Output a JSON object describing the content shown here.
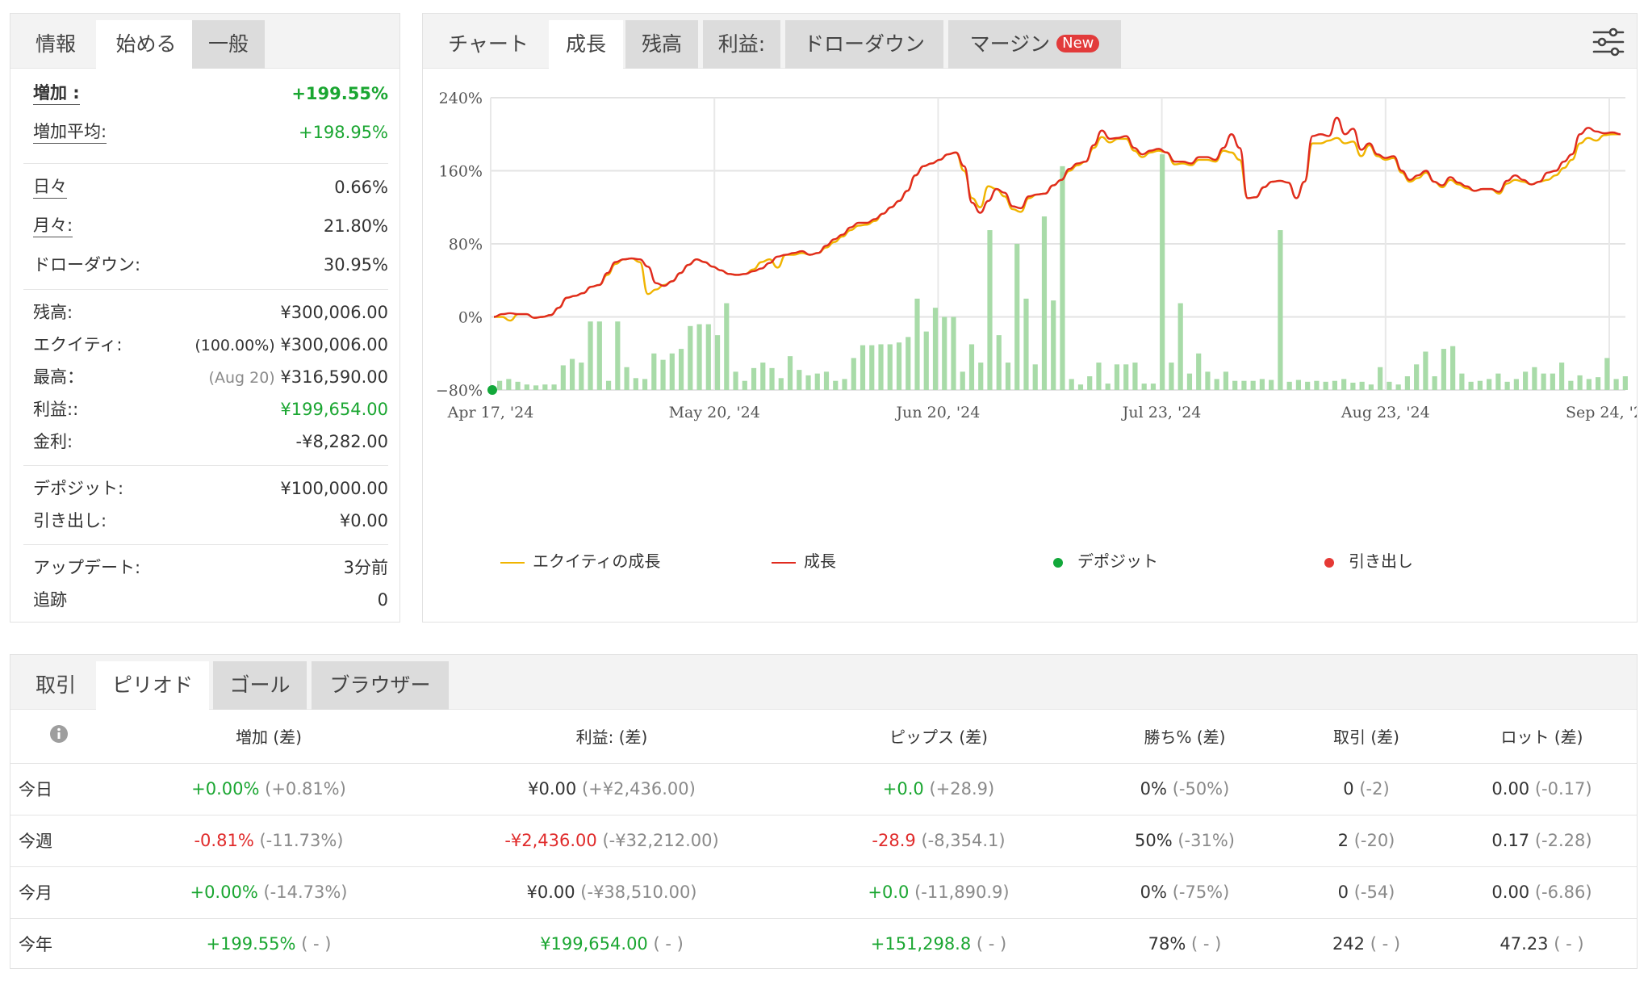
{
  "info_panel": {
    "tabs": [
      "情報",
      "始める",
      "一般"
    ],
    "rows": {
      "gain": {
        "label": "増加 :",
        "value": "+199.55%"
      },
      "abs_gain": {
        "label": "増加平均:",
        "value": "+198.95%"
      },
      "daily": {
        "label": "日々",
        "value": "0.66%"
      },
      "monthly": {
        "label": "月々:",
        "value": "21.80%"
      },
      "drawdown": {
        "label": "ドローダウン:",
        "value": "30.95%"
      },
      "balance": {
        "label": "残高:",
        "value": "¥300,006.00"
      },
      "equity": {
        "label": "エクイティ:",
        "note": "(100.00%)",
        "value": "¥300,006.00"
      },
      "highest": {
        "label": "最高：",
        "note": "(Aug 20)",
        "value": "¥316,590.00"
      },
      "profit": {
        "label": "利益::",
        "value": "¥199,654.00"
      },
      "interest": {
        "label": "金利:",
        "value": "-¥8,282.00"
      },
      "deposits": {
        "label": "デポジット:",
        "value": "¥100,000.00"
      },
      "withdrawals": {
        "label": "引き出し:",
        "value": "¥0.00"
      },
      "updated": {
        "label": "アップデート:",
        "value": "3分前"
      },
      "tracking": {
        "label": "追跡",
        "value": "0"
      }
    }
  },
  "chart_panel": {
    "tabs": [
      "チャート",
      "成長",
      "残高",
      "利益:",
      "ドローダウン",
      "マージン"
    ],
    "new_badge": "New",
    "settings_icon": "sliders-icon",
    "legend": {
      "equity_growth": "エクイティの成長",
      "growth": "成長",
      "deposit": "デポジット",
      "withdrawal": "引き出し"
    }
  },
  "chart_data": {
    "type": "line",
    "x_ticks": [
      "Apr 17, '24",
      "May 20, '24",
      "Jun 20, '24",
      "Jul 23, '24",
      "Aug 23, '24",
      "Sep 24, '24"
    ],
    "y_ticks": [
      "240%",
      "160%",
      "80%",
      "0%",
      "−80%"
    ],
    "ylim": [
      -80,
      240
    ],
    "grid": true,
    "colors": {
      "growth": "#e02b1f",
      "equity": "#f0b400",
      "bars": "#a8dba8",
      "deposit": "#12a83a",
      "withdrawal": "#e53935"
    },
    "series": [
      {
        "name": "成長",
        "values": [
          0,
          3,
          4,
          3,
          3,
          -1,
          0,
          2,
          10,
          21,
          23,
          26,
          33,
          35,
          48,
          60,
          63,
          64,
          63,
          55,
          37,
          34,
          39,
          48,
          57,
          63,
          60,
          55,
          51,
          47,
          46,
          47,
          50,
          53,
          59,
          66,
          68,
          70,
          72,
          68,
          70,
          78,
          85,
          90,
          98,
          103,
          103,
          107,
          113,
          120,
          127,
          138,
          155,
          165,
          168,
          172,
          178,
          180,
          165,
          125,
          114,
          127,
          140,
          136,
          121,
          119,
          132,
          134,
          135,
          144,
          150,
          162,
          168,
          170,
          188,
          204,
          195,
          196,
          198,
          185,
          178,
          182,
          184,
          180,
          170,
          170,
          168,
          175,
          175,
          172,
          185,
          200,
          185,
          130,
          131,
          142,
          148,
          149,
          147,
          130,
          148,
          198,
          200,
          198,
          218,
          200,
          206,
          183,
          190,
          178,
          174,
          176,
          160,
          150,
          155,
          160,
          148,
          144,
          153,
          147,
          143,
          138,
          140,
          140,
          137,
          149,
          155,
          150,
          145,
          148,
          158,
          160,
          170,
          178,
          200,
          207,
          203,
          201,
          202,
          200
        ]
      },
      {
        "name": "エクイティの成長",
        "values": [
          0,
          0,
          -4,
          3,
          3,
          -1,
          0,
          2,
          10,
          21,
          23,
          26,
          33,
          35,
          46,
          58,
          63,
          64,
          60,
          25,
          30,
          35,
          39,
          48,
          57,
          63,
          60,
          55,
          51,
          47,
          46,
          47,
          52,
          60,
          63,
          54,
          68,
          68,
          70,
          68,
          70,
          76,
          82,
          88,
          95,
          100,
          101,
          105,
          113,
          120,
          127,
          138,
          155,
          165,
          168,
          172,
          178,
          180,
          160,
          130,
          120,
          143,
          140,
          132,
          118,
          115,
          130,
          134,
          135,
          144,
          150,
          160,
          166,
          170,
          185,
          197,
          191,
          195,
          195,
          182,
          175,
          180,
          182,
          180,
          167,
          168,
          166,
          172,
          172,
          170,
          182,
          180,
          172,
          130,
          131,
          142,
          148,
          149,
          147,
          130,
          148,
          190,
          190,
          193,
          196,
          190,
          192,
          176,
          188,
          176,
          172,
          174,
          158,
          148,
          152,
          158,
          148,
          142,
          150,
          145,
          141,
          138,
          140,
          140,
          135,
          146,
          150,
          148,
          145,
          148,
          150,
          155,
          163,
          172,
          190,
          196,
          193,
          199,
          200,
          200
        ]
      }
    ],
    "bars": [
      10,
      12,
      9,
      6,
      5,
      6,
      6,
      27,
      34,
      30,
      75,
      75,
      10,
      75,
      25,
      13,
      12,
      40,
      33,
      40,
      45,
      70,
      72,
      72,
      60,
      95,
      20,
      10,
      24,
      30,
      24,
      13,
      37,
      22,
      16,
      18,
      20,
      10,
      12,
      35,
      49,
      49,
      50,
      50,
      52,
      58,
      100,
      64,
      90,
      80,
      80,
      20,
      50,
      30,
      175,
      60,
      30,
      160,
      100,
      28,
      190,
      98,
      245,
      12,
      6,
      15,
      30,
      7,
      28,
      28,
      30,
      7,
      7,
      258,
      30,
      95,
      18,
      40,
      20,
      12,
      20,
      10,
      10,
      10,
      12,
      11,
      175,
      9,
      11,
      9,
      10,
      9,
      10,
      12,
      8,
      9,
      6,
      25,
      9,
      6,
      15,
      28,
      42,
      15,
      45,
      48,
      18,
      9,
      10,
      12,
      18,
      9,
      12,
      20,
      25,
      18,
      18,
      30,
      10,
      16,
      12,
      14,
      35,
      12,
      15
    ]
  },
  "bottom_panel": {
    "tabs": [
      "取引",
      "ピリオド",
      "ゴール",
      "ブラウザー"
    ],
    "info_icon": "info-icon",
    "headers": [
      "増加 (差)",
      "利益: (差)",
      "ピップス (差)",
      "勝ち% (差)",
      "取引 (差)",
      "ロット (差)"
    ],
    "rows": [
      {
        "period": "今日",
        "gain": {
          "v": "+0.00%",
          "d": "(+0.81%)",
          "c": "green"
        },
        "profit": {
          "v": "¥0.00",
          "d": "(+¥2,436.00)",
          "c": "black"
        },
        "pips": {
          "v": "+0.0",
          "d": "(+28.9)",
          "c": "green"
        },
        "win": {
          "v": "0%",
          "d": "(-50%)"
        },
        "trades": {
          "v": "0",
          "d": "(-2)"
        },
        "lots": {
          "v": "0.00",
          "d": "(-0.17)"
        }
      },
      {
        "period": "今週",
        "gain": {
          "v": "-0.81%",
          "d": "(-11.73%)",
          "c": "red"
        },
        "profit": {
          "v": "-¥2,436.00",
          "d": "(-¥32,212.00)",
          "c": "red"
        },
        "pips": {
          "v": "-28.9",
          "d": "(-8,354.1)",
          "c": "red"
        },
        "win": {
          "v": "50%",
          "d": "(-31%)"
        },
        "trades": {
          "v": "2",
          "d": "(-20)"
        },
        "lots": {
          "v": "0.17",
          "d": "(-2.28)"
        }
      },
      {
        "period": "今月",
        "gain": {
          "v": "+0.00%",
          "d": "(-14.73%)",
          "c": "green"
        },
        "profit": {
          "v": "¥0.00",
          "d": "(-¥38,510.00)",
          "c": "black"
        },
        "pips": {
          "v": "+0.0",
          "d": "(-11,890.9)",
          "c": "green"
        },
        "win": {
          "v": "0%",
          "d": "(-75%)"
        },
        "trades": {
          "v": "0",
          "d": "(-54)"
        },
        "lots": {
          "v": "0.00",
          "d": "(-6.86)"
        }
      },
      {
        "period": "今年",
        "gain": {
          "v": "+199.55%",
          "d": "( - )",
          "c": "green"
        },
        "profit": {
          "v": "¥199,654.00",
          "d": "( - )",
          "c": "green"
        },
        "pips": {
          "v": "+151,298.8",
          "d": "( - )",
          "c": "green"
        },
        "win": {
          "v": "78%",
          "d": "( - )"
        },
        "trades": {
          "v": "242",
          "d": "( - )"
        },
        "lots": {
          "v": "47.23",
          "d": "( - )"
        }
      }
    ]
  }
}
